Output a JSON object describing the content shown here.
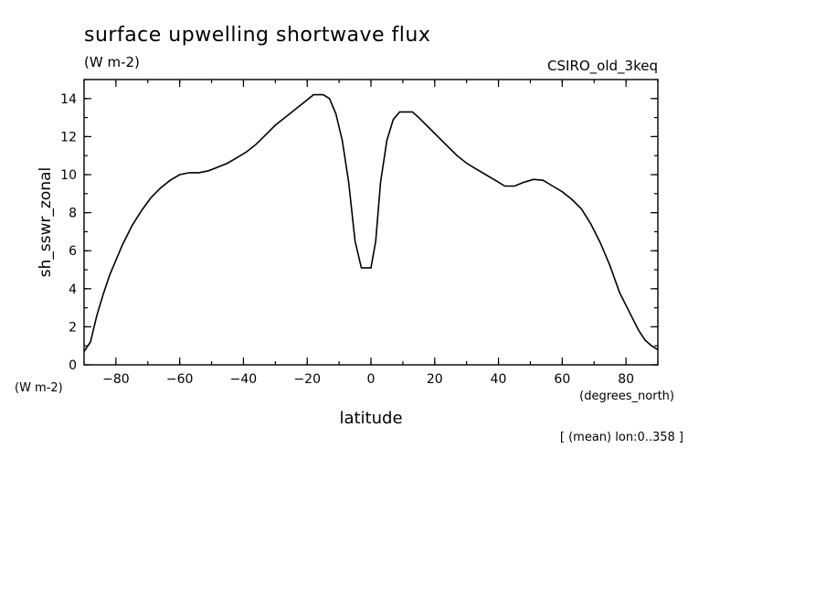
{
  "chart_data": {
    "type": "line",
    "title": "surface upwelling shortwave flux",
    "units": "(W m-2)",
    "model": "CSIRO_old_3keq",
    "ylabel": "sh_sswr_zonal",
    "y_units_label": "(W m-2)",
    "xlabel": "latitude",
    "x_units_label": "(degrees_north)",
    "footnote": "[ (mean) lon:0..358 ]",
    "xlim": [
      -90,
      90
    ],
    "ylim": [
      0,
      15
    ],
    "x_ticks": [
      -80,
      -60,
      -40,
      -20,
      0,
      20,
      40,
      60,
      80
    ],
    "x_tick_labels": [
      "-80",
      "-60",
      "-40",
      "-20",
      "0",
      "20",
      "40",
      "60",
      "80"
    ],
    "y_ticks": [
      0,
      2,
      4,
      6,
      8,
      10,
      12,
      14
    ],
    "y_tick_labels": [
      "0",
      "2",
      "4",
      "6",
      "8",
      "10",
      "12",
      "14"
    ],
    "grid": false,
    "series": [
      {
        "x": [
          -90,
          -88,
          -86,
          -84,
          -82,
          -80,
          -78,
          -75,
          -72,
          -69,
          -66,
          -63,
          -60,
          -57,
          -54,
          -51,
          -48,
          -45,
          -42,
          -39,
          -36,
          -33,
          -30,
          -27,
          -24,
          -21,
          -18,
          -15,
          -13,
          -11,
          -9,
          -7,
          -5,
          -3,
          -1.5,
          0,
          1.5,
          3,
          5,
          7,
          9,
          11,
          13,
          15,
          18,
          21,
          24,
          27,
          30,
          33,
          36,
          39,
          42,
          45,
          48,
          51,
          54,
          57,
          60,
          63,
          66,
          69,
          72,
          75,
          78,
          81,
          84,
          86,
          88,
          90
        ],
        "y": [
          0.7,
          1.2,
          2.6,
          3.7,
          4.7,
          5.5,
          6.3,
          7.3,
          8.1,
          8.8,
          9.3,
          9.7,
          10.0,
          10.1,
          10.1,
          10.2,
          10.4,
          10.6,
          10.9,
          11.2,
          11.6,
          12.1,
          12.6,
          13.0,
          13.4,
          13.8,
          14.2,
          14.2,
          14.0,
          13.2,
          11.8,
          9.6,
          6.5,
          5.1,
          5.1,
          5.1,
          6.5,
          9.6,
          11.8,
          12.9,
          13.3,
          13.3,
          13.3,
          13.0,
          12.5,
          12.0,
          11.5,
          11.0,
          10.6,
          10.3,
          10.0,
          9.7,
          9.4,
          9.4,
          9.6,
          9.75,
          9.7,
          9.4,
          9.1,
          8.7,
          8.2,
          7.4,
          6.4,
          5.2,
          3.8,
          2.8,
          1.8,
          1.3,
          1.0,
          0.8
        ]
      }
    ]
  }
}
